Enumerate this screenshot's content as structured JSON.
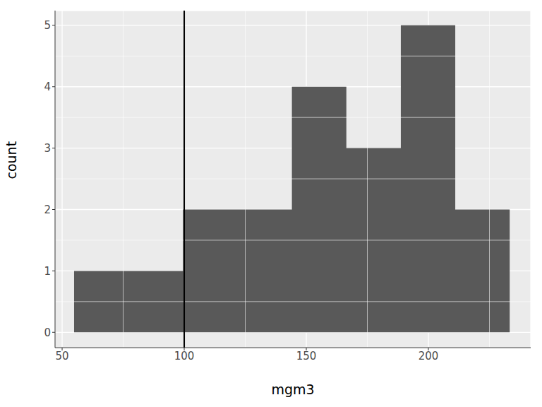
{
  "chart_data": {
    "type": "histogram",
    "x_label": "mgm3",
    "y_label": "count",
    "bins": [
      54.9,
      77.2,
      99.5,
      121.8,
      144.1,
      166.4,
      188.7,
      211.0,
      233.3
    ],
    "counts": [
      1,
      1,
      2,
      2,
      4,
      3,
      5,
      2
    ],
    "color": "#595959",
    "xlim": [
      47.1,
      241.9
    ],
    "ylim": [
      -0.25,
      5.24
    ],
    "xticks": [
      50,
      100,
      150,
      200
    ],
    "yticks": [
      0,
      1,
      2,
      3,
      4,
      5
    ],
    "grid": true,
    "vline": 100
  }
}
